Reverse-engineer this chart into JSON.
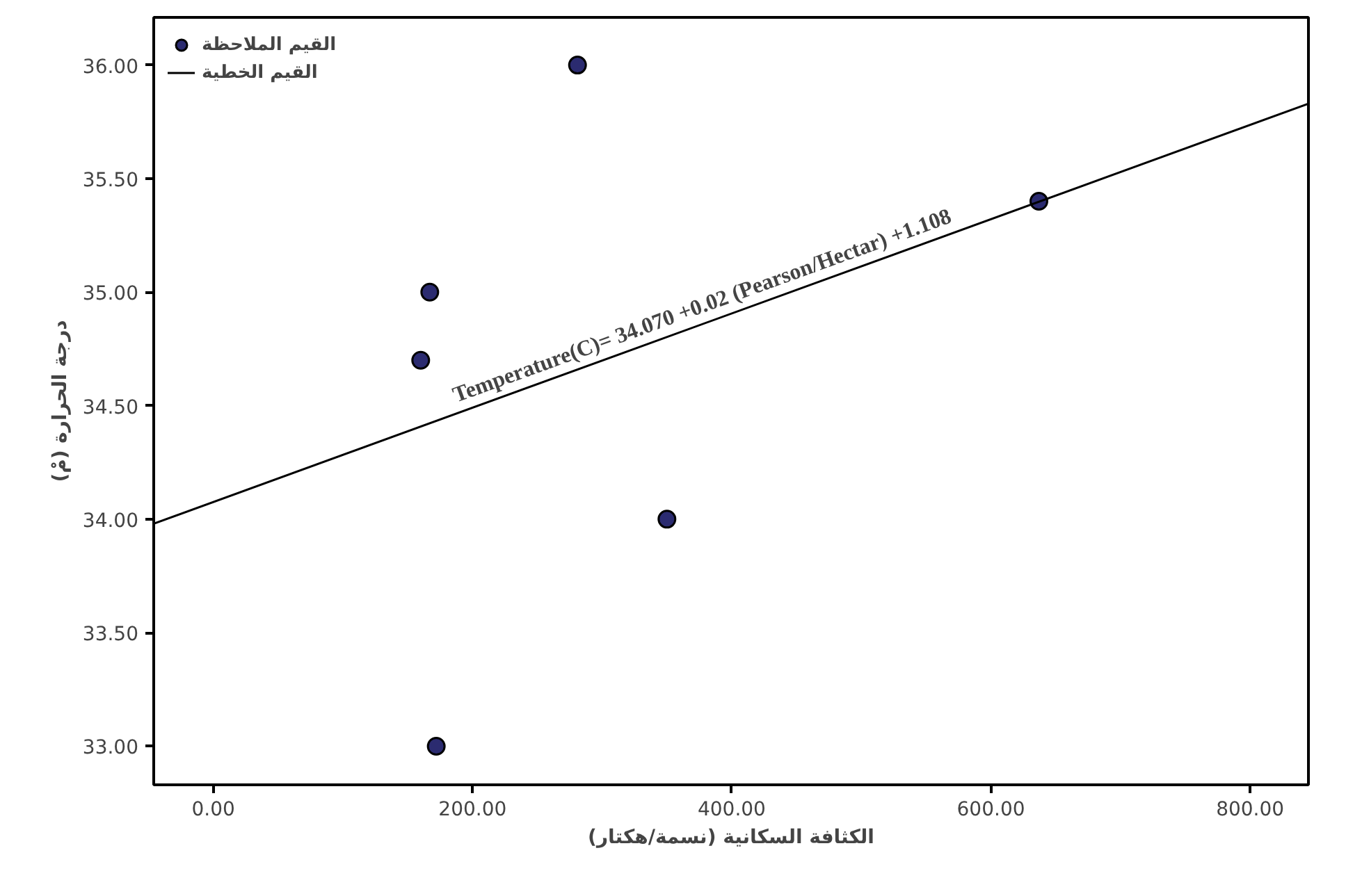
{
  "chart_data": {
    "type": "scatter",
    "xlabel": "الكثافة السكانية (نسمة/هكتار)",
    "ylabel": "درجة الحرارة (مْ)",
    "xlim": [
      -46,
      845
    ],
    "ylim": [
      32.83,
      36.21
    ],
    "xticks": [
      {
        "value": 0,
        "label": "0.00"
      },
      {
        "value": 200,
        "label": "200.00"
      },
      {
        "value": 400,
        "label": "400.00"
      },
      {
        "value": 600,
        "label": "600.00"
      },
      {
        "value": 800,
        "label": "800.00"
      }
    ],
    "yticks": [
      {
        "value": 33,
        "label": "33.00"
      },
      {
        "value": 33.5,
        "label": "33.50"
      },
      {
        "value": 34,
        "label": "34.00"
      },
      {
        "value": 34.5,
        "label": "34.50"
      },
      {
        "value": 35,
        "label": "35.00"
      },
      {
        "value": 35.5,
        "label": "35.50"
      },
      {
        "value": 36,
        "label": "36.00"
      }
    ],
    "grid": false,
    "legend": "top left",
    "series": [
      {
        "name": "القيم الملاحظة",
        "color": "#2b2b70",
        "marker": "circle",
        "x": [
          281,
          167,
          160,
          350,
          172,
          637
        ],
        "values": [
          36.0,
          35.0,
          34.7,
          34.0,
          33.0,
          35.4
        ]
      },
      {
        "name": "القيم الخطية",
        "type": "line",
        "color": "#000000",
        "x": [
          -46,
          845
        ],
        "values": [
          33.98,
          35.83
        ],
        "line_style": "solid"
      }
    ],
    "annotations": [
      "Temperature(C)= 34.070 +0.02 (Pearson/Hectar) +1.108"
    ]
  }
}
